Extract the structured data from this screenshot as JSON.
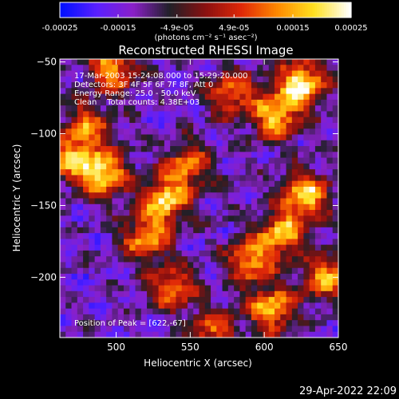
{
  "chart_data": {
    "type": "heatmap",
    "title": "Reconstructed RHESSI Image",
    "xlabel": "Heliocentric X (arcsec)",
    "ylabel": "Heliocentric Y (arcsec)",
    "xlim": [
      462,
      650
    ],
    "ylim": [
      -242,
      -48
    ],
    "xticks": [
      500,
      550,
      600,
      650
    ],
    "yticks": [
      -200,
      -150,
      -100,
      -50
    ],
    "colorbar": {
      "label": "(photons cm⁻² s⁻¹ asec⁻²)",
      "min": -0.00025,
      "max": 0.00025,
      "ticks": [
        "-0.00025",
        "-0.00015",
        "-4.9e-05",
        "4.9e-05",
        "0.00015",
        "0.00025"
      ],
      "tick_values": [
        -0.00025,
        -0.00015,
        -4.9e-05,
        4.9e-05,
        0.00015,
        0.00025
      ]
    },
    "info_lines": [
      "17-Mar-2003 15:24:08.000 to 15:29:20.000",
      "Detectors: 3F 4F 5F 6F 7F 8F, Att 0",
      "Energy Range: 25.0 - 50.0 keV",
      "Clean    Total counts: 4.38E+03"
    ],
    "peak_label": "Position of Peak = [622,-67]",
    "peak_position": [
      622,
      -67
    ],
    "hotspots": [
      {
        "x": 625,
        "y": -65,
        "value": 0.00025
      },
      {
        "x": 608,
        "y": -88,
        "value": 0.00019
      },
      {
        "x": 578,
        "y": -72,
        "value": 0.00012
      },
      {
        "x": 498,
        "y": -55,
        "value": 0.00017
      },
      {
        "x": 492,
        "y": -128,
        "value": 0.00022
      },
      {
        "x": 470,
        "y": -118,
        "value": 0.00014
      },
      {
        "x": 533,
        "y": -147,
        "value": 0.0002
      },
      {
        "x": 548,
        "y": -123,
        "value": 0.00013
      },
      {
        "x": 628,
        "y": -143,
        "value": 0.00021
      },
      {
        "x": 612,
        "y": -170,
        "value": 0.00018
      },
      {
        "x": 590,
        "y": -188,
        "value": 0.00015
      },
      {
        "x": 520,
        "y": -173,
        "value": 0.00015
      },
      {
        "x": 538,
        "y": -207,
        "value": 0.00013
      },
      {
        "x": 605,
        "y": -222,
        "value": 0.00019
      },
      {
        "x": 642,
        "y": -200,
        "value": 0.00016
      },
      {
        "x": 480,
        "y": -95,
        "value": 0.00011
      },
      {
        "x": 565,
        "y": -238,
        "value": 0.0001
      }
    ]
  },
  "footer": {
    "timestamp": "29-Apr-2022 22:09"
  },
  "colors": {
    "background": "#000000",
    "foreground": "#ffffff",
    "colormap": [
      "#0010ff",
      "#5a20ff",
      "#8a20c8",
      "#202028",
      "#8a1010",
      "#e02808",
      "#ff8a00",
      "#ffe020",
      "#ffffff"
    ]
  }
}
